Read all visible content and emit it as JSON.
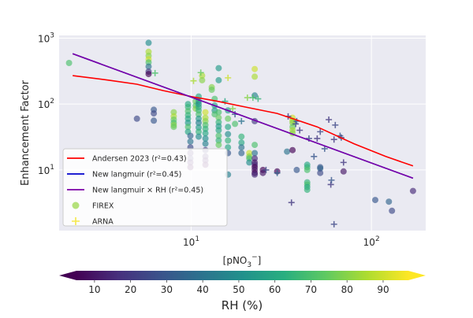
{
  "chart_data": {
    "type": "scatter",
    "x_scale": "log",
    "y_scale": "log",
    "xlim": [
      1.85,
      200
    ],
    "ylim": [
      1.2,
      1100
    ],
    "xlabel": "[pNO$_3$$^-$]",
    "xlabel_parts": [
      "[pNO",
      "3",
      "−",
      "]"
    ],
    "ylabel": "Enhancement Factor",
    "grid": true,
    "x_ticks": [
      {
        "value": 10,
        "base": "10",
        "exp": "1"
      },
      {
        "value": 100,
        "base": "10",
        "exp": "2"
      }
    ],
    "y_ticks": [
      {
        "value": 10,
        "base": "10",
        "exp": "1"
      },
      {
        "value": 100,
        "base": "10",
        "exp": "2"
      },
      {
        "value": 1000,
        "base": "10",
        "exp": "3"
      }
    ],
    "legend": {
      "placement": "lower-left",
      "entries": [
        {
          "label": "Andersen 2023 (r²=0.43)",
          "kind": "line",
          "color": "#ff0000"
        },
        {
          "label": "New langmuir (r²=0.45)",
          "kind": "line",
          "color": "#0000cc"
        },
        {
          "label": "New langmuir × RH (r²=0.45)",
          "kind": "line",
          "color": "#7b00a6"
        },
        {
          "label": "FIREX",
          "kind": "circle",
          "color": "#a3d95a"
        },
        {
          "label": "ARNA",
          "kind": "plus",
          "color": "#f5e84a"
        }
      ]
    },
    "series": [
      {
        "name": "Andersen 2023 (r²=0.43)",
        "kind": "line",
        "color": "#ff0000",
        "points": [
          [
            2.2,
            270
          ],
          [
            3.5,
            230
          ],
          [
            5,
            200
          ],
          [
            7,
            160
          ],
          [
            10,
            130
          ],
          [
            14,
            110
          ],
          [
            20,
            90
          ],
          [
            30,
            72
          ],
          [
            50,
            45
          ],
          [
            80,
            25
          ],
          [
            120,
            16
          ],
          [
            170,
            11.5
          ]
        ]
      },
      {
        "name": "New langmuir (r²=0.45)",
        "kind": "line",
        "color": "#0000cc",
        "points": [
          [
            2.2,
            580
          ],
          [
            170,
            7.5
          ]
        ]
      },
      {
        "name": "New langmuir × RH (r²=0.45)",
        "kind": "line",
        "color": "#7b00a6",
        "points": [
          [
            2.2,
            580
          ],
          [
            170,
            7.5
          ]
        ]
      },
      {
        "name": "FIREX",
        "kind": "circle",
        "points": [
          [
            2.1,
            420,
            70
          ],
          [
            5.0,
            60,
            25
          ],
          [
            5.8,
            850,
            50
          ],
          [
            5.8,
            620,
            85
          ],
          [
            5.8,
            540,
            80
          ],
          [
            5.8,
            480,
            90
          ],
          [
            5.8,
            430,
            70
          ],
          [
            5.8,
            370,
            40
          ],
          [
            5.8,
            310,
            20
          ],
          [
            5.8,
            285,
            5
          ],
          [
            6.2,
            82,
            30
          ],
          [
            6.2,
            72,
            25
          ],
          [
            6.2,
            56,
            30
          ],
          [
            8.0,
            75,
            80
          ],
          [
            8.0,
            65,
            85
          ],
          [
            8.0,
            58,
            75
          ],
          [
            8.0,
            52,
            70
          ],
          [
            8.0,
            48,
            80
          ],
          [
            8.0,
            45,
            75
          ],
          [
            9.6,
            100,
            60
          ],
          [
            9.6,
            90,
            65
          ],
          [
            9.6,
            78,
            70
          ],
          [
            9.6,
            68,
            65
          ],
          [
            9.6,
            60,
            60
          ],
          [
            9.6,
            52,
            55
          ],
          [
            9.6,
            45,
            70
          ],
          [
            9.6,
            38,
            60
          ],
          [
            9.9,
            33,
            35
          ],
          [
            9.9,
            27,
            40
          ],
          [
            9.9,
            22,
            25
          ],
          [
            9.9,
            18,
            15
          ],
          [
            9.9,
            15,
            20
          ],
          [
            9.9,
            13,
            10
          ],
          [
            9.9,
            11,
            5
          ],
          [
            10.6,
            110,
            75
          ],
          [
            10.6,
            95,
            70
          ],
          [
            10.6,
            85,
            80
          ],
          [
            11.0,
            130,
            60
          ],
          [
            11.0,
            110,
            55
          ],
          [
            11.0,
            100,
            50
          ],
          [
            11.0,
            90,
            60
          ],
          [
            11.0,
            80,
            65
          ],
          [
            11.0,
            70,
            70
          ],
          [
            11.0,
            60,
            55
          ],
          [
            11.0,
            52,
            45
          ],
          [
            11.0,
            44,
            55
          ],
          [
            11.0,
            38,
            65
          ],
          [
            11.0,
            32,
            50
          ],
          [
            11.5,
            270,
            85
          ],
          [
            11.5,
            230,
            80
          ],
          [
            12.0,
            75,
            90
          ],
          [
            12.0,
            62,
            85
          ],
          [
            12.0,
            55,
            80
          ],
          [
            12.0,
            48,
            70
          ],
          [
            12.0,
            42,
            65
          ],
          [
            12.0,
            36,
            60
          ],
          [
            12.0,
            30,
            50
          ],
          [
            12.0,
            25,
            45
          ],
          [
            12.0,
            20,
            20
          ],
          [
            12.0,
            16,
            15
          ],
          [
            12.0,
            14,
            10
          ],
          [
            12.0,
            12,
            5
          ],
          [
            13.0,
            180,
            80
          ],
          [
            13.0,
            165,
            75
          ],
          [
            13.5,
            120,
            70
          ],
          [
            13.5,
            95,
            60
          ],
          [
            13.5,
            80,
            55
          ],
          [
            13.5,
            70,
            70
          ],
          [
            14.2,
            350,
            55
          ],
          [
            14.2,
            230,
            55
          ],
          [
            14.2,
            75,
            70
          ],
          [
            14.2,
            62,
            75
          ],
          [
            14.2,
            53,
            65
          ],
          [
            14.2,
            46,
            55
          ],
          [
            14.2,
            40,
            60
          ],
          [
            14.2,
            33,
            70
          ],
          [
            14.2,
            28,
            65
          ],
          [
            14.2,
            24,
            75
          ],
          [
            16.0,
            80,
            55
          ],
          [
            16.0,
            60,
            75
          ],
          [
            16.0,
            45,
            60
          ],
          [
            16.0,
            35,
            50
          ],
          [
            16.0,
            28,
            65
          ],
          [
            16.0,
            22,
            60
          ],
          [
            16.0,
            18,
            30
          ],
          [
            16.0,
            8.5,
            45
          ],
          [
            17.5,
            50,
            70
          ],
          [
            19.0,
            32,
            65
          ],
          [
            19.0,
            26,
            60
          ],
          [
            19.0,
            22,
            40
          ],
          [
            19.0,
            18,
            35
          ],
          [
            21.0,
            18,
            90
          ],
          [
            21.0,
            16,
            80
          ],
          [
            21.0,
            15,
            70
          ],
          [
            21.0,
            13,
            50
          ],
          [
            22.5,
            340,
            90
          ],
          [
            22.5,
            260,
            85
          ],
          [
            22.5,
            135,
            45
          ],
          [
            22.5,
            55,
            20
          ],
          [
            22.5,
            24,
            70
          ],
          [
            22.5,
            18,
            40
          ],
          [
            22.5,
            15,
            15
          ],
          [
            22.5,
            13,
            10
          ],
          [
            22.5,
            12,
            15
          ],
          [
            22.5,
            11,
            5
          ],
          [
            22.5,
            10,
            10
          ],
          [
            22.5,
            9,
            5
          ],
          [
            22.5,
            8.5,
            15
          ],
          [
            25.0,
            10,
            5
          ],
          [
            25.0,
            9,
            10
          ],
          [
            30.0,
            9.5,
            5
          ],
          [
            34.0,
            19,
            40
          ],
          [
            36.5,
            62,
            90
          ],
          [
            36.5,
            56,
            85
          ],
          [
            36.5,
            52,
            80
          ],
          [
            36.5,
            45,
            75
          ],
          [
            36.5,
            40,
            85
          ],
          [
            36.5,
            36,
            80
          ],
          [
            36.5,
            20,
            5
          ],
          [
            38.5,
            10,
            30
          ],
          [
            44.0,
            12,
            60
          ],
          [
            44.0,
            11,
            65
          ],
          [
            44.0,
            10,
            70
          ],
          [
            44.0,
            6.5,
            65
          ],
          [
            44.0,
            6,
            70
          ],
          [
            44.0,
            5.5,
            60
          ],
          [
            44.0,
            5,
            65
          ],
          [
            52.0,
            11,
            30
          ],
          [
            52.0,
            10.5,
            35
          ],
          [
            52.0,
            9,
            25
          ],
          [
            70.0,
            9.5,
            10
          ],
          [
            105,
            3.5,
            30
          ],
          [
            125,
            3.3,
            35
          ],
          [
            130,
            2.4,
            25
          ],
          [
            170,
            4.8,
            15
          ]
        ]
      },
      {
        "name": "ARNA",
        "kind": "plus",
        "points": [
          [
            6.3,
            295,
            70
          ],
          [
            10.3,
            225,
            85
          ],
          [
            11.3,
            300,
            75
          ],
          [
            15.4,
            110,
            60
          ],
          [
            16.0,
            250,
            90
          ],
          [
            17.0,
            85,
            80
          ],
          [
            20.5,
            125,
            80
          ],
          [
            22.0,
            125,
            70
          ],
          [
            23.5,
            120,
            65
          ],
          [
            17.5,
            70,
            30
          ],
          [
            19.0,
            55,
            40
          ],
          [
            26.0,
            10,
            25
          ],
          [
            30.0,
            9,
            35
          ],
          [
            34.5,
            65,
            20
          ],
          [
            36.0,
            3.2,
            20
          ],
          [
            38.0,
            50,
            25
          ],
          [
            38.5,
            55,
            30
          ],
          [
            40.0,
            40,
            20
          ],
          [
            45.0,
            30,
            25
          ],
          [
            48.0,
            16,
            30
          ],
          [
            50.0,
            30,
            20
          ],
          [
            52.0,
            38,
            25
          ],
          [
            55.0,
            21,
            30
          ],
          [
            58.0,
            58,
            20
          ],
          [
            59.5,
            6,
            20
          ],
          [
            60.0,
            7,
            30
          ],
          [
            62.0,
            29,
            20
          ],
          [
            62.0,
            1.5,
            25
          ],
          [
            63.0,
            48,
            25
          ],
          [
            67.0,
            33,
            30
          ],
          [
            68.0,
            31,
            25
          ],
          [
            70.0,
            13,
            20
          ]
        ]
      }
    ],
    "colorbar": {
      "label": "RH (%)",
      "min": 5,
      "max": 97,
      "ticks": [
        10,
        20,
        30,
        40,
        50,
        60,
        70,
        80,
        90
      ],
      "colormap": "viridis"
    }
  }
}
